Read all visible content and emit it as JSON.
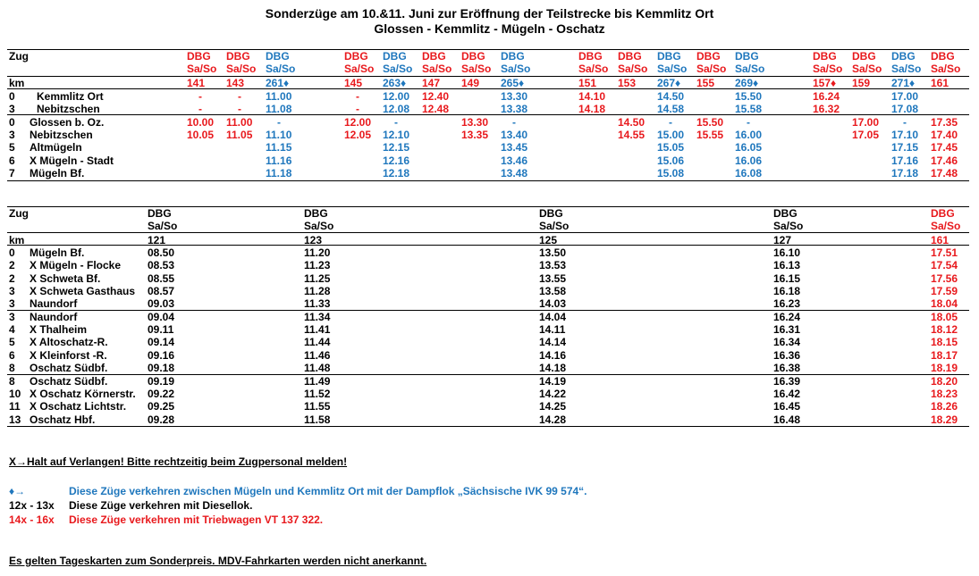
{
  "title": {
    "line1": "Sonderzüge am 10.&11. Juni zur Eröffnung der Teilstrecke bis Kemmlitz Ort",
    "line2": "Glossen - Kemmlitz - Mügeln - Oschatz"
  },
  "table1": {
    "zug_label": "Zug",
    "km_label": "km",
    "columns": [
      {
        "op": "DBG",
        "days": "Sa/So",
        "num": "141",
        "color": "red"
      },
      {
        "op": "DBG",
        "days": "Sa/So",
        "num": "143",
        "color": "red"
      },
      {
        "op": "DBG",
        "days": "Sa/So",
        "num": "261♦",
        "color": "blue"
      },
      {
        "op": "DBG",
        "days": "Sa/So",
        "num": "145",
        "color": "red"
      },
      {
        "op": "DBG",
        "days": "Sa/So",
        "num": "263♦",
        "color": "blue"
      },
      {
        "op": "DBG",
        "days": "Sa/So",
        "num": "147",
        "color": "red"
      },
      {
        "op": "DBG",
        "days": "Sa/So",
        "num": "149",
        "color": "red"
      },
      {
        "op": "DBG",
        "days": "Sa/So",
        "num": "265♦",
        "color": "blue"
      },
      {
        "op": "DBG",
        "days": "Sa/So",
        "num": "151",
        "color": "red"
      },
      {
        "op": "DBG",
        "days": "Sa/So",
        "num": "153",
        "color": "red"
      },
      {
        "op": "DBG",
        "days": "Sa/So",
        "num": "267♦",
        "color": "blue"
      },
      {
        "op": "DBG",
        "days": "Sa/So",
        "num": "155",
        "color": "red"
      },
      {
        "op": "DBG",
        "days": "Sa/So",
        "num": "269♦",
        "color": "blue"
      },
      {
        "op": "DBG",
        "days": "Sa/So",
        "num": "157♦",
        "color": "red"
      },
      {
        "op": "DBG",
        "days": "Sa/So",
        "num": "159",
        "color": "red"
      },
      {
        "op": "DBG",
        "days": "Sa/So",
        "num": "271♦",
        "color": "blue"
      },
      {
        "op": "DBG",
        "days": "Sa/So",
        "num": "161",
        "color": "red"
      }
    ],
    "rows": [
      {
        "km": "0",
        "station": "Kemmlitz Ort",
        "cells": [
          "-",
          "-",
          "11.00",
          "-",
          "12.00",
          "12.40",
          "",
          "13.30",
          "14.10",
          "",
          "14.50",
          "",
          "15.50",
          "16.24",
          "",
          "17.00",
          ""
        ]
      },
      {
        "km": "3",
        "station": "Nebitzschen",
        "cells": [
          "-",
          "-",
          "11.08",
          "-",
          "12.08",
          "12.48",
          "",
          "13.38",
          "14.18",
          "",
          "14.58",
          "",
          "15.58",
          "16.32",
          "",
          "17.08",
          ""
        ]
      },
      {
        "km": "0",
        "station": "Glossen b. Oz.",
        "cells": [
          "10.00",
          "11.00",
          "-",
          "12.00",
          "-",
          "",
          "13.30",
          "-",
          "",
          "14.50",
          "-",
          "15.50",
          "-",
          "",
          "17.00",
          "-",
          "17.35"
        ]
      },
      {
        "km": "3",
        "station": "Nebitzschen",
        "cells": [
          "10.05",
          "11.05",
          "11.10",
          "12.05",
          "12.10",
          "",
          "13.35",
          "13.40",
          "",
          "14.55",
          "15.00",
          "15.55",
          "16.00",
          "",
          "17.05",
          "17.10",
          "17.40"
        ]
      },
      {
        "km": "5",
        "station": "Altmügeln",
        "cells": [
          "",
          "",
          "11.15",
          "",
          "12.15",
          "",
          "",
          "13.45",
          "",
          "",
          "15.05",
          "",
          "16.05",
          "",
          "",
          "17.15",
          "17.45"
        ]
      },
      {
        "km": "6",
        "station": "X Mügeln - Stadt",
        "cells": [
          "",
          "",
          "11.16",
          "",
          "12.16",
          "",
          "",
          "13.46",
          "",
          "",
          "15.06",
          "",
          "16.06",
          "",
          "",
          "17.16",
          "17.46"
        ]
      },
      {
        "km": "7",
        "station": "Mügeln Bf.",
        "cells": [
          "",
          "",
          "11.18",
          "",
          "12.18",
          "",
          "",
          "13.48",
          "",
          "",
          "15.08",
          "",
          "16.08",
          "",
          "",
          "17.18",
          "17.48"
        ]
      }
    ]
  },
  "table2": {
    "zug_label": "Zug",
    "km_label": "km",
    "columns": [
      {
        "op": "DBG",
        "days": "Sa/So",
        "num": "121",
        "color": "black"
      },
      {
        "op": "DBG",
        "days": "Sa/So",
        "num": "123",
        "color": "black"
      },
      {
        "op": "DBG",
        "days": "Sa/So",
        "num": "125",
        "color": "black"
      },
      {
        "op": "DBG",
        "days": "Sa/So",
        "num": "127",
        "color": "black"
      },
      {
        "op": "DBG",
        "days": "Sa/So",
        "num": "161",
        "color": "red"
      }
    ],
    "rows": [
      {
        "km": "0",
        "station": "Mügeln Bf.",
        "cells": [
          "08.50",
          "11.20",
          "13.50",
          "16.10",
          "17.51"
        ]
      },
      {
        "km": "2",
        "station": "X Mügeln - Flocke",
        "cells": [
          "08.53",
          "11.23",
          "13.53",
          "16.13",
          "17.54"
        ]
      },
      {
        "km": "2",
        "station": "X Schweta Bf.",
        "cells": [
          "08.55",
          "11.25",
          "13.55",
          "16.15",
          "17.56"
        ]
      },
      {
        "km": "3",
        "station": "X Schweta Gasthaus",
        "cells": [
          "08.57",
          "11.28",
          "13.58",
          "16.18",
          "17.59"
        ]
      },
      {
        "km": "3",
        "station": "Naundorf",
        "cells": [
          "09.03",
          "11.33",
          "14.03",
          "16.23",
          "18.04"
        ]
      },
      {
        "km": "3",
        "station": "Naundorf",
        "cells": [
          "09.04",
          "11.34",
          "14.04",
          "16.24",
          "18.05"
        ]
      },
      {
        "km": "4",
        "station": "X Thalheim",
        "cells": [
          "09.11",
          "11.41",
          "14.11",
          "16.31",
          "18.12"
        ]
      },
      {
        "km": "5",
        "station": "X Altoschatz-R.",
        "cells": [
          "09.14",
          "11.44",
          "14.14",
          "16.34",
          "18.15"
        ]
      },
      {
        "km": "6",
        "station": "X Kleinforst -R.",
        "cells": [
          "09.16",
          "11.46",
          "14.16",
          "16.36",
          "18.17"
        ]
      },
      {
        "km": "8",
        "station": "Oschatz Südbf.",
        "cells": [
          "09.18",
          "11.48",
          "14.18",
          "16.38",
          "18.19"
        ]
      },
      {
        "km": "8",
        "station": "Oschatz Südbf.",
        "cells": [
          "09.19",
          "11.49",
          "14.19",
          "16.39",
          "18.20"
        ]
      },
      {
        "km": "10",
        "station": "X Oschatz Körnerstr.",
        "cells": [
          "09.22",
          "11.52",
          "14.22",
          "16.42",
          "18.23"
        ]
      },
      {
        "km": "11",
        "station": "X Oschatz Lichtstr.",
        "cells": [
          "09.25",
          "11.55",
          "14.25",
          "16.45",
          "18.26"
        ]
      },
      {
        "km": "13",
        "station": "Oschatz Hbf.",
        "cells": [
          "09.28",
          "11.58",
          "14.28",
          "16.48",
          "18.29"
        ]
      }
    ]
  },
  "notes": {
    "halt": "X→Halt auf Verlangen! Bitte rechtzeitig beim Zugpersonal melden!",
    "steam_key": "♦→",
    "steam_text": "Diese Züge verkehren zwischen Mügeln und Kemmlitz Ort  mit der Dampflok „Sächsische IVK  99 574“.",
    "diesel_key": "12x - 13x",
    "diesel_text": "Diese Züge verkehren mit  Diesellok.",
    "railcar_key": "14x - 16x",
    "railcar_text": "Diese Züge verkehren mit  Triebwagen VT 137 322.",
    "tickets": "Es gelten Tageskarten zum Sonderpreis. MDV-Fahrkarten werden nicht anerkannt."
  },
  "colors": {
    "red": "#e8191d",
    "blue": "#1f77bd",
    "black": "#000000"
  }
}
